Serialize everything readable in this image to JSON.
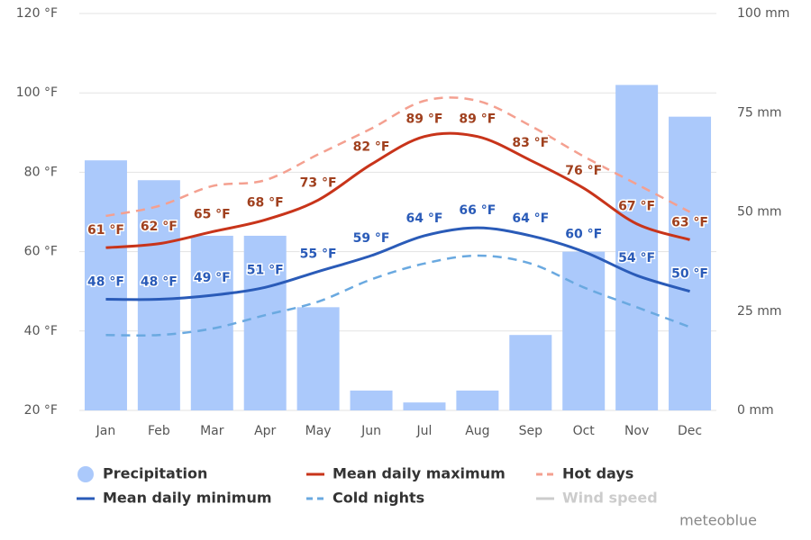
{
  "chart_data": {
    "type": "combo",
    "categories": [
      "Jan",
      "Feb",
      "Mar",
      "Apr",
      "May",
      "Jun",
      "Jul",
      "Aug",
      "Sep",
      "Oct",
      "Nov",
      "Dec"
    ],
    "ylim": [
      20,
      120
    ],
    "yticks": [
      {
        "value": 20,
        "label": "20 °F"
      },
      {
        "value": 40,
        "label": "40 °F"
      },
      {
        "value": 60,
        "label": "60 °F"
      },
      {
        "value": 80,
        "label": "80 °F"
      },
      {
        "value": 100,
        "label": "100 °F"
      },
      {
        "value": 120,
        "label": "120 °F"
      }
    ],
    "y2lim": [
      0,
      100
    ],
    "y2ticks": [
      {
        "value": 0,
        "label": "0 mm"
      },
      {
        "value": 25,
        "label": "25 mm"
      },
      {
        "value": 50,
        "label": "50 mm"
      },
      {
        "value": 75,
        "label": "75 mm"
      },
      {
        "value": 100,
        "label": "100 mm"
      }
    ],
    "grid": true,
    "series": [
      {
        "name": "Precipitation",
        "type": "bar",
        "axis": "y2",
        "color": "#abc9fb",
        "values": [
          63,
          58,
          44,
          44,
          26,
          5,
          2,
          5,
          19,
          40,
          82,
          74
        ]
      },
      {
        "name": "Mean daily maximum",
        "type": "line",
        "color": "#c8341a",
        "label_color": "#a0401e",
        "values": [
          61,
          62,
          65,
          68,
          73,
          82,
          89,
          89,
          83,
          76,
          67,
          63
        ],
        "value_labels": [
          "61 °F",
          "62 °F",
          "65 °F",
          "68 °F",
          "73 °F",
          "82 °F",
          "89 °F",
          "89 °F",
          "83 °F",
          "76 °F",
          "67 °F",
          "63 °F"
        ]
      },
      {
        "name": "Hot days",
        "type": "line",
        "dash": true,
        "color": "#f4a090",
        "values": [
          69,
          71.5,
          76.5,
          78,
          84.5,
          91,
          98,
          98,
          91.7,
          84,
          77,
          70
        ]
      },
      {
        "name": "Mean daily minimum",
        "type": "line",
        "color": "#2a5bb8",
        "label_color": "#2a5bb8",
        "values": [
          48,
          48,
          49,
          51,
          55,
          59,
          64,
          66,
          64,
          60,
          54,
          50
        ],
        "value_labels": [
          "48 °F",
          "48 °F",
          "49 °F",
          "51 °F",
          "55 °F",
          "59 °F",
          "64 °F",
          "66 °F",
          "64 °F",
          "60 °F",
          "54 °F",
          "50 °F"
        ]
      },
      {
        "name": "Cold nights",
        "type": "line",
        "dash": true,
        "color": "#6aa9e0",
        "values": [
          39,
          39,
          40.6,
          44,
          47.4,
          53,
          57,
          59,
          57,
          51,
          46,
          41
        ]
      }
    ],
    "inactive_legend": {
      "name": "Wind speed",
      "color": "#cccccc"
    },
    "watermark": "meteoblue"
  }
}
